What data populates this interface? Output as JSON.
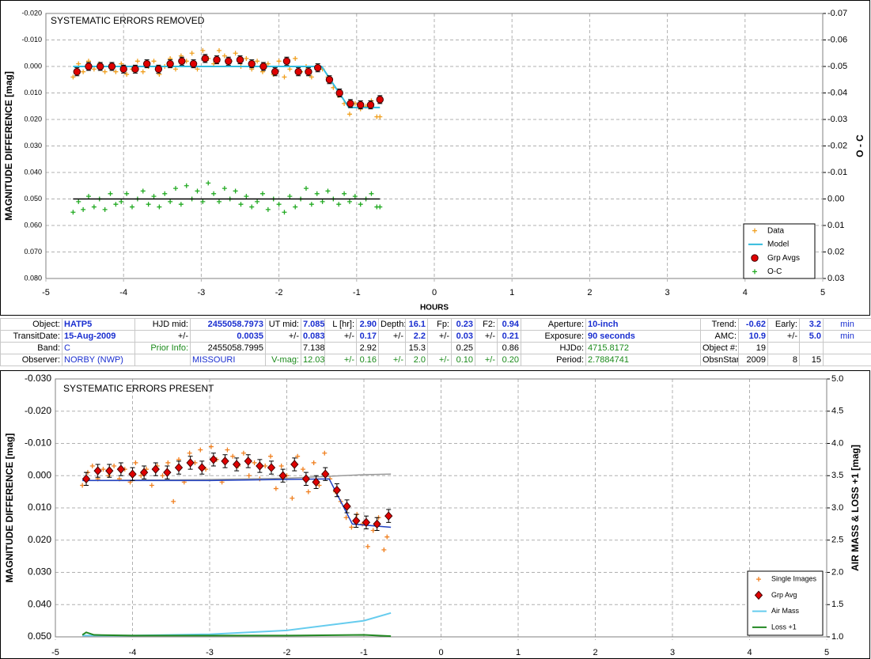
{
  "chart_data": [
    {
      "type": "scatter",
      "title": "SYSTEMATIC ERRORS REMOVED",
      "xlabel": "HOURS",
      "ylabel": "MAGNITUDE DIFFERENCE [mag]",
      "y2label": "O - C",
      "xlim": [
        -5,
        5
      ],
      "xticks": [
        -5,
        -4,
        -3,
        -2,
        -1,
        0,
        1,
        2,
        3,
        4,
        5
      ],
      "ylim": [
        -0.02,
        0.08
      ],
      "y_reversed": true,
      "yticks": [
        {
          "value": -0.02,
          "label": "-0.020"
        },
        {
          "value": -0.01,
          "label": "-0.010"
        },
        {
          "value": 0,
          "label": "0.000"
        },
        {
          "value": 0.01,
          "label": "0.010"
        },
        {
          "value": 0.02,
          "label": "0.020"
        },
        {
          "value": 0.03,
          "label": "0.030"
        },
        {
          "value": 0.04,
          "label": "0.040"
        },
        {
          "value": 0.05,
          "label": "0.050"
        },
        {
          "value": 0.06,
          "label": "0.060"
        },
        {
          "value": 0.07,
          "label": "0.070"
        },
        {
          "value": 0.08,
          "label": "0.080"
        }
      ],
      "y2lim": [
        -0.07,
        0.03
      ],
      "y2_reversed": true,
      "y2ticks": [
        {
          "value": -0.07,
          "label": "-0.07"
        },
        {
          "value": -0.06,
          "label": "-0.06"
        },
        {
          "value": -0.05,
          "label": "-0.05"
        },
        {
          "value": -0.04,
          "label": "-0.04"
        },
        {
          "value": -0.03,
          "label": "-0.03"
        },
        {
          "value": -0.02,
          "label": "-0.02"
        },
        {
          "value": -0.01,
          "label": "-0.01"
        },
        {
          "value": 0,
          "label": "0.00"
        },
        {
          "value": 0.01,
          "label": "0.01"
        },
        {
          "value": 0.02,
          "label": "0.02"
        },
        {
          "value": 0.03,
          "label": "0.03"
        }
      ],
      "grid": true,
      "legend": "lower right",
      "series": [
        {
          "name": "Data",
          "color": "#f0a020",
          "marker": "plus",
          "x": [
            -4.65,
            -4.58,
            -4.52,
            -4.45,
            -4.38,
            -4.31,
            -4.24,
            -4.17,
            -4.1,
            -4.03,
            -3.96,
            -3.89,
            -3.82,
            -3.75,
            -3.68,
            -3.61,
            -3.54,
            -3.47,
            -3.4,
            -3.33,
            -3.26,
            -3.19,
            -3.12,
            -3.05,
            -2.98,
            -2.91,
            -2.84,
            -2.77,
            -2.7,
            -2.63,
            -2.56,
            -2.49,
            -2.42,
            -2.35,
            -2.28,
            -2.21,
            -2.14,
            -2.07,
            -2.0,
            -1.93,
            -1.86,
            -1.79,
            -1.72,
            -1.65,
            -1.58,
            -1.51,
            -1.44,
            -1.37,
            -1.3,
            -1.23,
            -1.16,
            -1.09,
            -1.02,
            -0.95,
            -0.88,
            -0.81,
            -0.74,
            -0.7
          ],
          "values": [
            0.004,
            -0.001,
            0.002,
            -0.002,
            0.001,
            -0.001,
            0.002,
            0.0,
            0.002,
            -0.001,
            0.003,
            0.001,
            -0.002,
            0.002,
            0.0,
            -0.002,
            0.003,
            0.0,
            -0.003,
            0.001,
            -0.004,
            -0.002,
            -0.005,
            0.001,
            -0.006,
            -0.003,
            -0.001,
            -0.006,
            -0.004,
            -0.002,
            -0.005,
            0.0,
            -0.003,
            0.001,
            -0.002,
            0.002,
            -0.001,
            0.003,
            -0.002,
            0.004,
            0.001,
            -0.003,
            0.002,
            0.0,
            0.004,
            0.0,
            0.001,
            0.004,
            0.008,
            0.011,
            0.014,
            0.018,
            0.014,
            0.016,
            0.015,
            0.013,
            0.019,
            0.019
          ]
        },
        {
          "name": "Model",
          "color": "#33bbdd",
          "marker": "line",
          "x": [
            -4.65,
            -1.45,
            -1.1,
            -0.7
          ],
          "values": [
            0.0,
            0.0,
            0.0155,
            0.0155
          ]
        },
        {
          "name": "Grp Avgs",
          "color": "#e00000",
          "marker": "circle",
          "x": [
            -4.6,
            -4.45,
            -4.3,
            -4.15,
            -4.0,
            -3.85,
            -3.7,
            -3.55,
            -3.4,
            -3.25,
            -3.1,
            -2.95,
            -2.8,
            -2.65,
            -2.5,
            -2.35,
            -2.2,
            -2.05,
            -1.9,
            -1.75,
            -1.62,
            -1.5,
            -1.35,
            -1.22,
            -1.08,
            -0.95,
            -0.82,
            -0.7
          ],
          "values": [
            0.002,
            0.0,
            0.0,
            0.0,
            0.001,
            0.001,
            -0.001,
            0.001,
            -0.001,
            -0.002,
            -0.001,
            -0.003,
            -0.0025,
            -0.002,
            -0.0025,
            -0.001,
            0.0,
            0.002,
            -0.002,
            0.002,
            0.002,
            0.0005,
            0.005,
            0.01,
            0.014,
            0.0145,
            0.0145,
            0.0125
          ],
          "errors": [
            0.0015,
            0.0015,
            0.0015,
            0.0015,
            0.0015,
            0.0015,
            0.0015,
            0.0015,
            0.0015,
            0.0015,
            0.0015,
            0.0015,
            0.0015,
            0.0015,
            0.0015,
            0.0015,
            0.0015,
            0.0015,
            0.0015,
            0.0015,
            0.0015,
            0.0015,
            0.0015,
            0.0015,
            0.0015,
            0.0015,
            0.0015,
            0.0015
          ]
        },
        {
          "name": "O-C",
          "color": "#22aa22",
          "marker": "plus",
          "axis": "y2",
          "x": [
            -4.65,
            -4.58,
            -4.52,
            -4.45,
            -4.38,
            -4.31,
            -4.24,
            -4.17,
            -4.1,
            -4.03,
            -3.96,
            -3.89,
            -3.82,
            -3.75,
            -3.68,
            -3.61,
            -3.54,
            -3.47,
            -3.4,
            -3.33,
            -3.26,
            -3.19,
            -3.12,
            -3.05,
            -2.98,
            -2.91,
            -2.84,
            -2.77,
            -2.7,
            -2.63,
            -2.56,
            -2.49,
            -2.42,
            -2.35,
            -2.28,
            -2.21,
            -2.14,
            -2.07,
            -2.0,
            -1.93,
            -1.86,
            -1.79,
            -1.72,
            -1.65,
            -1.58,
            -1.51,
            -1.44,
            -1.37,
            -1.3,
            -1.23,
            -1.16,
            -1.09,
            -1.02,
            -0.95,
            -0.88,
            -0.81,
            -0.74,
            -0.7
          ],
          "values": [
            0.005,
            0.001,
            0.004,
            -0.001,
            0.003,
            0.0,
            0.004,
            -0.002,
            0.002,
            0.001,
            -0.002,
            0.003,
            0.0,
            -0.003,
            0.002,
            -0.001,
            0.003,
            -0.002,
            0.001,
            -0.004,
            0.002,
            -0.005,
            0.0,
            -0.003,
            0.001,
            -0.006,
            -0.002,
            0.001,
            -0.004,
            0.0,
            -0.003,
            0.002,
            -0.001,
            0.003,
            0.001,
            -0.002,
            0.004,
            0.0,
            0.002,
            0.005,
            -0.001,
            0.003,
            0.0,
            -0.004,
            0.002,
            -0.002,
            0.001,
            -0.003,
            0.0,
            0.002,
            -0.002,
            0.001,
            -0.001,
            0.002,
            0.0,
            -0.002,
            0.003,
            0.003
          ]
        },
        {
          "color": "#000000",
          "marker": "line",
          "axis": "y2",
          "x": [
            -4.65,
            -0.7
          ],
          "values": [
            0,
            0
          ]
        }
      ]
    },
    {
      "type": "scatter",
      "title": "SYSTEMATIC ERRORS PRESENT",
      "ylabel": "MAGNITUDE DIFFERENCE [mag]",
      "y2label": "AIR MASS & LOSS +1 [mag]",
      "xlim": [
        -5,
        5
      ],
      "xticks": [
        -5,
        -4,
        -3,
        -2,
        -1,
        0,
        1,
        2,
        3,
        4,
        5
      ],
      "ylim": [
        -0.03,
        0.05
      ],
      "y_reversed": true,
      "yticks": [
        {
          "value": -0.03,
          "label": "-0.030"
        },
        {
          "value": -0.02,
          "label": "-0.020"
        },
        {
          "value": -0.01,
          "label": "-0.010"
        },
        {
          "value": 0,
          "label": "0.000"
        },
        {
          "value": 0.01,
          "label": "0.010"
        },
        {
          "value": 0.02,
          "label": "0.020"
        },
        {
          "value": 0.03,
          "label": "0.030"
        },
        {
          "value": 0.04,
          "label": "0.040"
        },
        {
          "value": 0.05,
          "label": "0.050"
        }
      ],
      "y2lim": [
        1,
        5
      ],
      "y2_reversed": false,
      "y2ticks": [
        {
          "value": 1,
          "label": "1.0"
        },
        {
          "value": 1.5,
          "label": "1.5"
        },
        {
          "value": 2,
          "label": "2.0"
        },
        {
          "value": 2.5,
          "label": "2.5"
        },
        {
          "value": 3,
          "label": "3.0"
        },
        {
          "value": 3.5,
          "label": "3.5"
        },
        {
          "value": 4,
          "label": "4.0"
        },
        {
          "value": 4.5,
          "label": "4.5"
        },
        {
          "value": 5,
          "label": "5.0"
        }
      ],
      "grid": true,
      "legend": "lower right",
      "series": [
        {
          "name": "Single Images",
          "color": "#f08020",
          "marker": "plus",
          "x": [
            -4.65,
            -4.58,
            -4.52,
            -4.45,
            -4.38,
            -4.31,
            -4.24,
            -4.17,
            -4.1,
            -4.03,
            -3.96,
            -3.89,
            -3.82,
            -3.75,
            -3.68,
            -3.61,
            -3.54,
            -3.47,
            -3.4,
            -3.33,
            -3.26,
            -3.19,
            -3.12,
            -3.05,
            -2.98,
            -2.91,
            -2.84,
            -2.77,
            -2.7,
            -2.63,
            -2.56,
            -2.49,
            -2.42,
            -2.35,
            -2.28,
            -2.21,
            -2.14,
            -2.07,
            -2.0,
            -1.93,
            -1.86,
            -1.79,
            -1.72,
            -1.65,
            -1.58,
            -1.51,
            -1.44,
            -1.37,
            -1.3,
            -1.23,
            -1.16,
            -1.09,
            -1.02,
            -0.95,
            -0.88,
            -0.81,
            -0.74,
            -0.7
          ],
          "values": [
            0.003,
            -0.001,
            -0.003,
            0.001,
            -0.002,
            0.0,
            -0.003,
            0.001,
            -0.002,
            0.002,
            -0.004,
            0.0,
            -0.002,
            0.003,
            -0.003,
            0.0,
            -0.004,
            0.008,
            -0.005,
            0.002,
            -0.007,
            -0.004,
            -0.008,
            -0.002,
            -0.009,
            -0.005,
            0.002,
            -0.008,
            -0.006,
            -0.003,
            -0.007,
            0.0,
            -0.004,
            0.001,
            -0.003,
            -0.006,
            0.004,
            -0.003,
            0.0,
            0.007,
            -0.006,
            -0.002,
            0.005,
            -0.004,
            0.003,
            -0.007,
            0.001,
            0.005,
            0.008,
            0.013,
            0.016,
            0.012,
            0.015,
            0.022,
            0.017,
            0.013,
            0.023,
            0.019
          ]
        },
        {
          "color": "#999999",
          "marker": "line",
          "x": [
            -4.65,
            -3,
            -2,
            -1,
            -0.65
          ],
          "values": [
            0.0015,
            0.0012,
            0.0008,
            -0.0003,
            -0.0005
          ]
        },
        {
          "color": "#2040c0",
          "marker": "line",
          "x": [
            -4.65,
            -3,
            -1.45,
            -1.15,
            -0.65
          ],
          "values": [
            0.0015,
            0.0015,
            0.001,
            0.015,
            0.016
          ]
        },
        {
          "name": "Grp Avg",
          "color": "#e00000",
          "marker": "diamond",
          "x": [
            -4.6,
            -4.45,
            -4.3,
            -4.15,
            -4.0,
            -3.85,
            -3.7,
            -3.55,
            -3.4,
            -3.25,
            -3.1,
            -2.95,
            -2.8,
            -2.65,
            -2.5,
            -2.35,
            -2.2,
            -2.05,
            -1.9,
            -1.75,
            -1.62,
            -1.5,
            -1.35,
            -1.22,
            -1.1,
            -0.97,
            -0.83,
            -0.68
          ],
          "values": [
            0.001,
            -0.0015,
            -0.0015,
            -0.002,
            -0.0005,
            -0.001,
            -0.002,
            -0.001,
            -0.0025,
            -0.004,
            -0.0025,
            -0.005,
            -0.0045,
            -0.0035,
            -0.0045,
            -0.003,
            -0.0025,
            0.0,
            -0.0035,
            0.001,
            0.002,
            -0.0005,
            0.0045,
            0.0095,
            0.014,
            0.0145,
            0.015,
            0.0125
          ],
          "errors": [
            0.002,
            0.002,
            0.002,
            0.002,
            0.002,
            0.002,
            0.002,
            0.002,
            0.002,
            0.002,
            0.002,
            0.002,
            0.002,
            0.002,
            0.002,
            0.002,
            0.002,
            0.002,
            0.002,
            0.002,
            0.002,
            0.002,
            0.002,
            0.002,
            0.002,
            0.002,
            0.002,
            0.002
          ]
        },
        {
          "name": "Air Mass",
          "color": "#66ccee",
          "marker": "line",
          "axis": "y2",
          "x": [
            -4.65,
            -4,
            -3,
            -2,
            -1,
            -0.65
          ],
          "values": [
            1.02,
            1.02,
            1.04,
            1.1,
            1.25,
            1.37
          ]
        },
        {
          "name": "Loss +1",
          "color": "#228822",
          "marker": "line",
          "axis": "y2",
          "x": [
            -4.65,
            -4.6,
            -4.5,
            -4,
            -3,
            -2,
            -1,
            -0.65
          ],
          "values": [
            1.03,
            1.07,
            1.03,
            1.02,
            1.02,
            1.02,
            1.03,
            1.01
          ]
        }
      ]
    }
  ],
  "table": {
    "rows": [
      [
        "Object:",
        "HATP5",
        "HJD mid:",
        "2455058.7973",
        "UT mid:",
        "7.085",
        "L [hr]:",
        "2.90",
        "Depth:",
        "16.1",
        "Fp:",
        "0.23",
        "F2:",
        "0.94",
        "Aperture:",
        "10-inch",
        "Trend:",
        "-0.62",
        "Early:",
        "3.2",
        "min"
      ],
      [
        "TransitDate:",
        "15-Aug-2009",
        "+/-",
        "0.0035",
        "+/-",
        "0.083",
        "+/-",
        "0.17",
        "+/-",
        "2.2",
        "+/-",
        "0.03",
        "+/-",
        "0.21",
        "Exposure:",
        "90 seconds",
        "AMC:",
        "10.9",
        "+/-",
        "5.0",
        "min"
      ],
      [
        "Band:",
        "C",
        "Prior Info:",
        "2455058.7995",
        null,
        "7.138",
        null,
        "2.92",
        null,
        "15.3",
        null,
        "0.25",
        null,
        "0.86",
        "HJDo:",
        "4715.8172",
        "Object #:",
        "19",
        null,
        null,
        null
      ],
      [
        "Observer:",
        "NORBY (NWP)",
        null,
        "MISSOURI",
        "V-mag:",
        "12.03",
        "+/-",
        "0.16",
        "+/-",
        "2.0",
        "+/-",
        "0.10",
        "+/-",
        "0.20",
        "Period:",
        "2.7884741",
        "ObsnStartDate:",
        "2009",
        "8",
        "15",
        null
      ]
    ]
  }
}
